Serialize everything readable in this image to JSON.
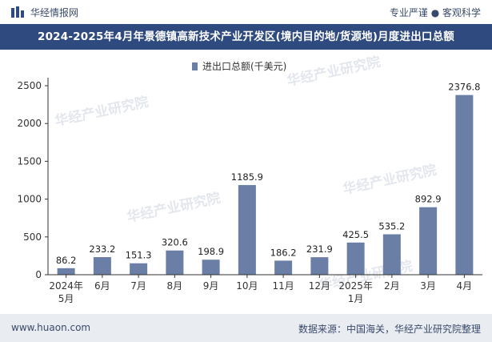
{
  "header": {
    "brand": "华经情报网",
    "slogan": "专业严谨 ● 客观科学"
  },
  "title": "2024-2025年4月年景德镇高新技术产业开发区(境内目的地/货源地)月度进出口总额",
  "footer": {
    "site": "www.huaon.com",
    "source": "数据来源：中国海关，华经产业研究院整理"
  },
  "watermark": "华经产业研究院",
  "colors": {
    "bar": "#6b7fa6",
    "title_bg": "#2e4a7e",
    "footer_bg": "#e9ecf1",
    "text": "#3a4a6b"
  },
  "chart_data": {
    "type": "bar",
    "legend": "进出口总额(千美元)",
    "categories": [
      "2024年5月",
      "6月",
      "7月",
      "8月",
      "9月",
      "10月",
      "11月",
      "12月",
      "2025年1月",
      "2月",
      "3月",
      "4月"
    ],
    "category_lines": [
      [
        "2024年",
        "5月"
      ],
      [
        "6月"
      ],
      [
        "7月"
      ],
      [
        "8月"
      ],
      [
        "9月"
      ],
      [
        "10月"
      ],
      [
        "11月"
      ],
      [
        "12月"
      ],
      [
        "2025年",
        "1月"
      ],
      [
        "2月"
      ],
      [
        "3月"
      ],
      [
        "4月"
      ]
    ],
    "values": [
      86.2,
      233.2,
      151.3,
      320.6,
      198.9,
      1185.9,
      186.2,
      231.9,
      425.5,
      535.2,
      892.9,
      2376.8
    ],
    "value_labels": [
      "86.2",
      "233.2",
      "151.3",
      "320.6",
      "198.9",
      "1185.9",
      "186.2",
      "231.9",
      "425.5",
      "535.2",
      "892.9",
      "2376.8"
    ],
    "ylim": [
      0,
      2500
    ],
    "yticks": [
      0,
      500,
      1000,
      1500,
      2000,
      2500
    ]
  }
}
